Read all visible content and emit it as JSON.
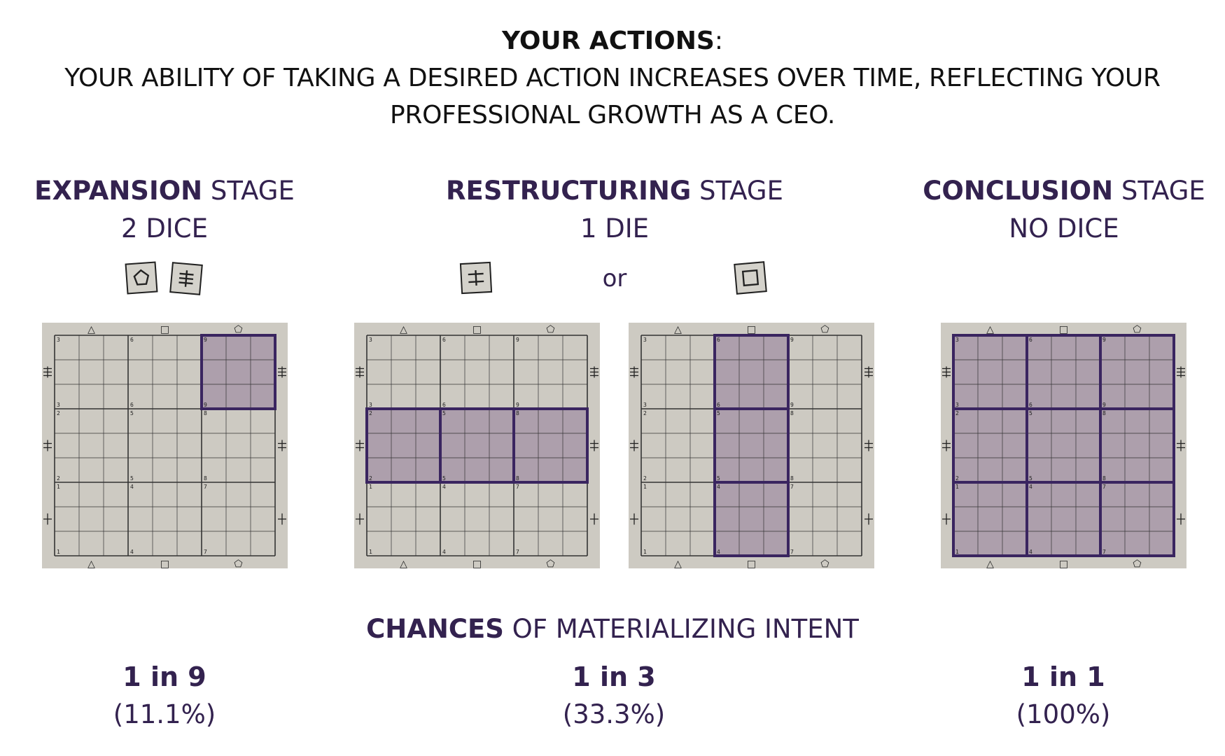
{
  "header": {
    "title_bold": "YOUR ACTIONS",
    "title_colon": ":",
    "line1": "YOUR ABILITY OF TAKING A DESIRED ACTION INCREASES OVER TIME, REFLECTING YOUR",
    "line2": "PROFESSIONAL GROWTH AS A CEO."
  },
  "stages": [
    {
      "name_bold": "EXPANSION",
      "name_rest": " STAGE",
      "dice": "2 DICE"
    },
    {
      "name_bold": "RESTRUCTURING",
      "name_rest": " STAGE",
      "dice": "1 DIE"
    },
    {
      "name_bold": "CONCLUSION",
      "name_rest": " STAGE",
      "dice": "NO DICE"
    }
  ],
  "dice_icons": [
    "pentagon-die",
    "triple-bar-die",
    "double-bar-die",
    "square-die"
  ],
  "or_label": "or",
  "board_labels": {
    "top_bottom_symbols": [
      "△",
      "□",
      "⬠"
    ],
    "corner_numbers": [
      "3",
      "6",
      "9",
      "2",
      "5",
      "8",
      "1",
      "4",
      "7"
    ]
  },
  "boards": [
    {
      "highlight": "top-right block (1 of 9)"
    },
    {
      "highlight": "middle row (3 of 9)"
    },
    {
      "highlight": "middle column (3 of 9)"
    },
    {
      "highlight": "all blocks (9 of 9)"
    }
  ],
  "chances": {
    "bold": "CHANCES",
    "rest": " OF MATERIALIZING INTENT"
  },
  "results": [
    {
      "ratio": "1 in 9",
      "percent": "(11.1%)"
    },
    {
      "ratio": "1 in 3",
      "percent": "(33.3%)"
    },
    {
      "ratio": "1 in 1",
      "percent": "(100%)"
    }
  ],
  "colors": {
    "accent": "#33224f",
    "board_bg": "#cdcac2",
    "highlight_fill": "#ad9fac",
    "highlight_stroke": "#3a2560",
    "grid": "#333333"
  }
}
